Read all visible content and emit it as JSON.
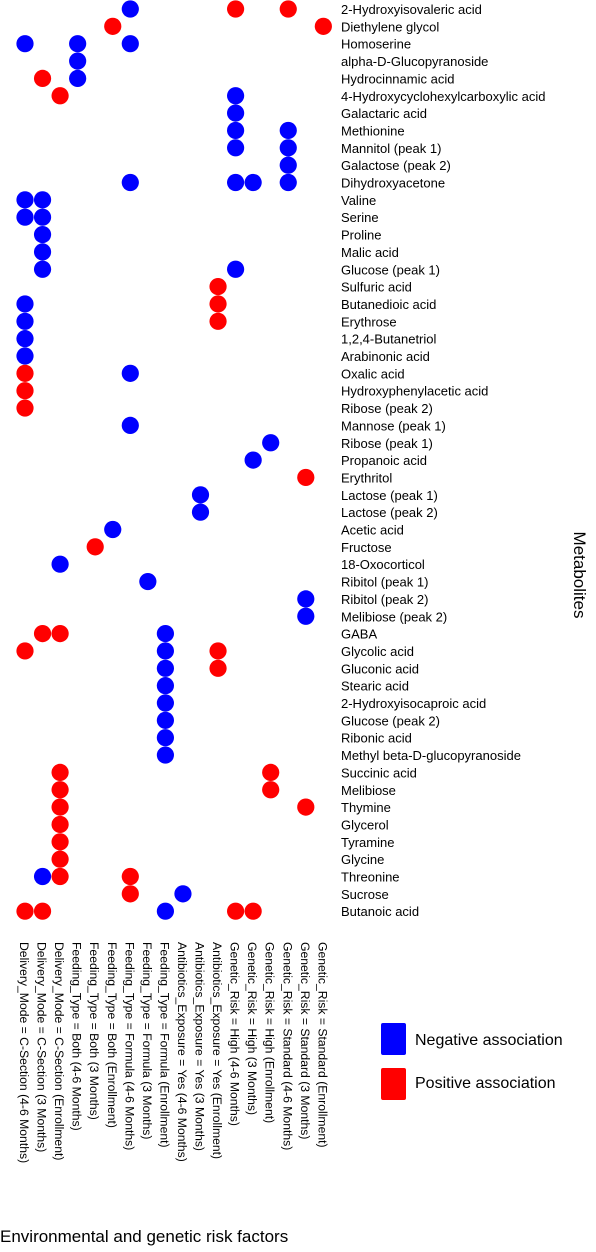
{
  "chart_data": {
    "type": "scatter",
    "xlabel": "Environmental and genetic risk factors",
    "ylabel": "Metabolites",
    "legend": {
      "placement": "right",
      "entries": [
        {
          "label": "Negative association",
          "color": "#0000ff"
        },
        {
          "label": "Positive association",
          "color": "#ff0000"
        }
      ]
    },
    "x_categories": [
      "Delivery_Mode = C-Section (4-6 Months)",
      "Delivery_Mode = C-Section (3 Months)",
      "Delivery_Mode = C-Section (Enrollment)",
      "Feeding_Type = Both (4-6 Months)",
      "Feeding_Type = Both (3 Months)",
      "Feeding_Type = Both (Enrollment)",
      "Feeding_Type = Formula (4-6 Months)",
      "Feeding_Type = Formula (3 Months)",
      "Feeding_Type = Formula (Enrollment)",
      "Antibiotics_Exposure = Yes (4-6 Months)",
      "Antibiotics_Exposure = Yes (3 Months)",
      "Antibiotics_Exposure = Yes (Enrollment)",
      "Genetic_Risk = High (4-6 Months)",
      "Genetic_Risk = High (3 Months)",
      "Genetic_Risk = High (Enrollment)",
      "Genetic_Risk = Standard (4-6 Months)",
      "Genetic_Risk = Standard (3 Months)",
      "Genetic_Risk = Standard (Enrollment)"
    ],
    "y_categories": [
      "2-Hydroxyisovaleric acid",
      "Diethylene glycol",
      "Homoserine",
      "alpha-D-Glucopyranoside",
      "Hydrocinnamic acid",
      "4-Hydroxycyclohexylcarboxylic acid",
      "Galactaric acid",
      "Methionine",
      "Mannitol (peak 1)",
      "Galactose (peak 2)",
      "Dihydroxyacetone",
      "Valine",
      "Serine",
      "Proline",
      "Malic acid",
      "Glucose (peak 1)",
      "Sulfuric acid",
      "Butanedioic acid",
      "Erythrose",
      "1,2,4-Butanetriol",
      "Arabinonic acid",
      "Oxalic acid",
      "Hydroxyphenylacetic acid",
      "Ribose (peak 2)",
      "Mannose (peak 1)",
      "Ribose (peak 1)",
      "Propanoic acid",
      "Erythritol",
      "Lactose (peak 1)",
      "Lactose (peak 2)",
      "Acetic acid",
      "Fructose",
      "18-Oxocorticol",
      "Ribitol (peak 1)",
      "Ribitol (peak 2)",
      "Melibiose (peak 2)",
      "GABA",
      "Glycolic acid",
      "Gluconic acid",
      "Stearic acid",
      "2-Hydroxyisocaproic acid",
      "Glucose (peak 2)",
      "Ribonic acid",
      "Methyl beta-D-glucopyranoside",
      "Succinic acid",
      "Melibiose",
      "Thymine",
      "Glycerol",
      "Tyramine",
      "Glycine",
      "Threonine",
      "Sucrose",
      "Butanoic acid"
    ],
    "points": [
      {
        "x": 6,
        "y": 0,
        "sign": "negative"
      },
      {
        "x": 12,
        "y": 0,
        "sign": "positive"
      },
      {
        "x": 15,
        "y": 0,
        "sign": "positive"
      },
      {
        "x": 5,
        "y": 1,
        "sign": "positive"
      },
      {
        "x": 17,
        "y": 1,
        "sign": "positive"
      },
      {
        "x": 0,
        "y": 2,
        "sign": "negative"
      },
      {
        "x": 3,
        "y": 2,
        "sign": "negative"
      },
      {
        "x": 6,
        "y": 2,
        "sign": "negative"
      },
      {
        "x": 3,
        "y": 3,
        "sign": "negative"
      },
      {
        "x": 1,
        "y": 4,
        "sign": "positive"
      },
      {
        "x": 3,
        "y": 4,
        "sign": "negative"
      },
      {
        "x": 2,
        "y": 5,
        "sign": "positive"
      },
      {
        "x": 12,
        "y": 5,
        "sign": "negative"
      },
      {
        "x": 12,
        "y": 6,
        "sign": "negative"
      },
      {
        "x": 12,
        "y": 7,
        "sign": "negative"
      },
      {
        "x": 15,
        "y": 7,
        "sign": "negative"
      },
      {
        "x": 12,
        "y": 8,
        "sign": "negative"
      },
      {
        "x": 15,
        "y": 8,
        "sign": "negative"
      },
      {
        "x": 15,
        "y": 9,
        "sign": "negative"
      },
      {
        "x": 6,
        "y": 10,
        "sign": "negative"
      },
      {
        "x": 12,
        "y": 10,
        "sign": "negative"
      },
      {
        "x": 13,
        "y": 10,
        "sign": "negative"
      },
      {
        "x": 15,
        "y": 10,
        "sign": "negative"
      },
      {
        "x": 0,
        "y": 11,
        "sign": "negative"
      },
      {
        "x": 1,
        "y": 11,
        "sign": "negative"
      },
      {
        "x": 0,
        "y": 12,
        "sign": "negative"
      },
      {
        "x": 1,
        "y": 12,
        "sign": "negative"
      },
      {
        "x": 1,
        "y": 13,
        "sign": "negative"
      },
      {
        "x": 1,
        "y": 14,
        "sign": "negative"
      },
      {
        "x": 1,
        "y": 15,
        "sign": "negative"
      },
      {
        "x": 12,
        "y": 15,
        "sign": "negative"
      },
      {
        "x": 11,
        "y": 16,
        "sign": "positive"
      },
      {
        "x": 0,
        "y": 17,
        "sign": "negative"
      },
      {
        "x": 11,
        "y": 17,
        "sign": "positive"
      },
      {
        "x": 0,
        "y": 18,
        "sign": "negative"
      },
      {
        "x": 11,
        "y": 18,
        "sign": "positive"
      },
      {
        "x": 0,
        "y": 19,
        "sign": "negative"
      },
      {
        "x": 0,
        "y": 20,
        "sign": "negative"
      },
      {
        "x": 0,
        "y": 21,
        "sign": "positive"
      },
      {
        "x": 6,
        "y": 21,
        "sign": "negative"
      },
      {
        "x": 0,
        "y": 22,
        "sign": "positive"
      },
      {
        "x": 0,
        "y": 23,
        "sign": "positive"
      },
      {
        "x": 6,
        "y": 24,
        "sign": "negative"
      },
      {
        "x": 14,
        "y": 25,
        "sign": "negative"
      },
      {
        "x": 13,
        "y": 26,
        "sign": "negative"
      },
      {
        "x": 16,
        "y": 27,
        "sign": "positive"
      },
      {
        "x": 10,
        "y": 28,
        "sign": "negative"
      },
      {
        "x": 10,
        "y": 29,
        "sign": "negative"
      },
      {
        "x": 5,
        "y": 30,
        "sign": "negative"
      },
      {
        "x": 4,
        "y": 31,
        "sign": "positive"
      },
      {
        "x": 2,
        "y": 32,
        "sign": "negative"
      },
      {
        "x": 7,
        "y": 33,
        "sign": "negative"
      },
      {
        "x": 16,
        "y": 34,
        "sign": "negative"
      },
      {
        "x": 16,
        "y": 35,
        "sign": "negative"
      },
      {
        "x": 1,
        "y": 36,
        "sign": "positive"
      },
      {
        "x": 2,
        "y": 36,
        "sign": "positive"
      },
      {
        "x": 8,
        "y": 36,
        "sign": "negative"
      },
      {
        "x": 0,
        "y": 37,
        "sign": "positive"
      },
      {
        "x": 8,
        "y": 37,
        "sign": "negative"
      },
      {
        "x": 11,
        "y": 37,
        "sign": "positive"
      },
      {
        "x": 8,
        "y": 38,
        "sign": "negative"
      },
      {
        "x": 11,
        "y": 38,
        "sign": "positive"
      },
      {
        "x": 8,
        "y": 39,
        "sign": "negative"
      },
      {
        "x": 8,
        "y": 40,
        "sign": "negative"
      },
      {
        "x": 8,
        "y": 41,
        "sign": "negative"
      },
      {
        "x": 8,
        "y": 42,
        "sign": "negative"
      },
      {
        "x": 8,
        "y": 43,
        "sign": "negative"
      },
      {
        "x": 2,
        "y": 44,
        "sign": "positive"
      },
      {
        "x": 14,
        "y": 44,
        "sign": "positive"
      },
      {
        "x": 2,
        "y": 45,
        "sign": "positive"
      },
      {
        "x": 14,
        "y": 45,
        "sign": "positive"
      },
      {
        "x": 2,
        "y": 46,
        "sign": "positive"
      },
      {
        "x": 16,
        "y": 46,
        "sign": "positive"
      },
      {
        "x": 2,
        "y": 47,
        "sign": "positive"
      },
      {
        "x": 2,
        "y": 48,
        "sign": "positive"
      },
      {
        "x": 2,
        "y": 49,
        "sign": "positive"
      },
      {
        "x": 1,
        "y": 50,
        "sign": "negative"
      },
      {
        "x": 2,
        "y": 50,
        "sign": "positive"
      },
      {
        "x": 6,
        "y": 50,
        "sign": "positive"
      },
      {
        "x": 6,
        "y": 51,
        "sign": "positive"
      },
      {
        "x": 9,
        "y": 51,
        "sign": "negative"
      },
      {
        "x": 0,
        "y": 52,
        "sign": "positive"
      },
      {
        "x": 1,
        "y": 52,
        "sign": "positive"
      },
      {
        "x": 8,
        "y": 52,
        "sign": "negative"
      },
      {
        "x": 12,
        "y": 52,
        "sign": "positive"
      },
      {
        "x": 13,
        "y": 52,
        "sign": "positive"
      }
    ]
  }
}
